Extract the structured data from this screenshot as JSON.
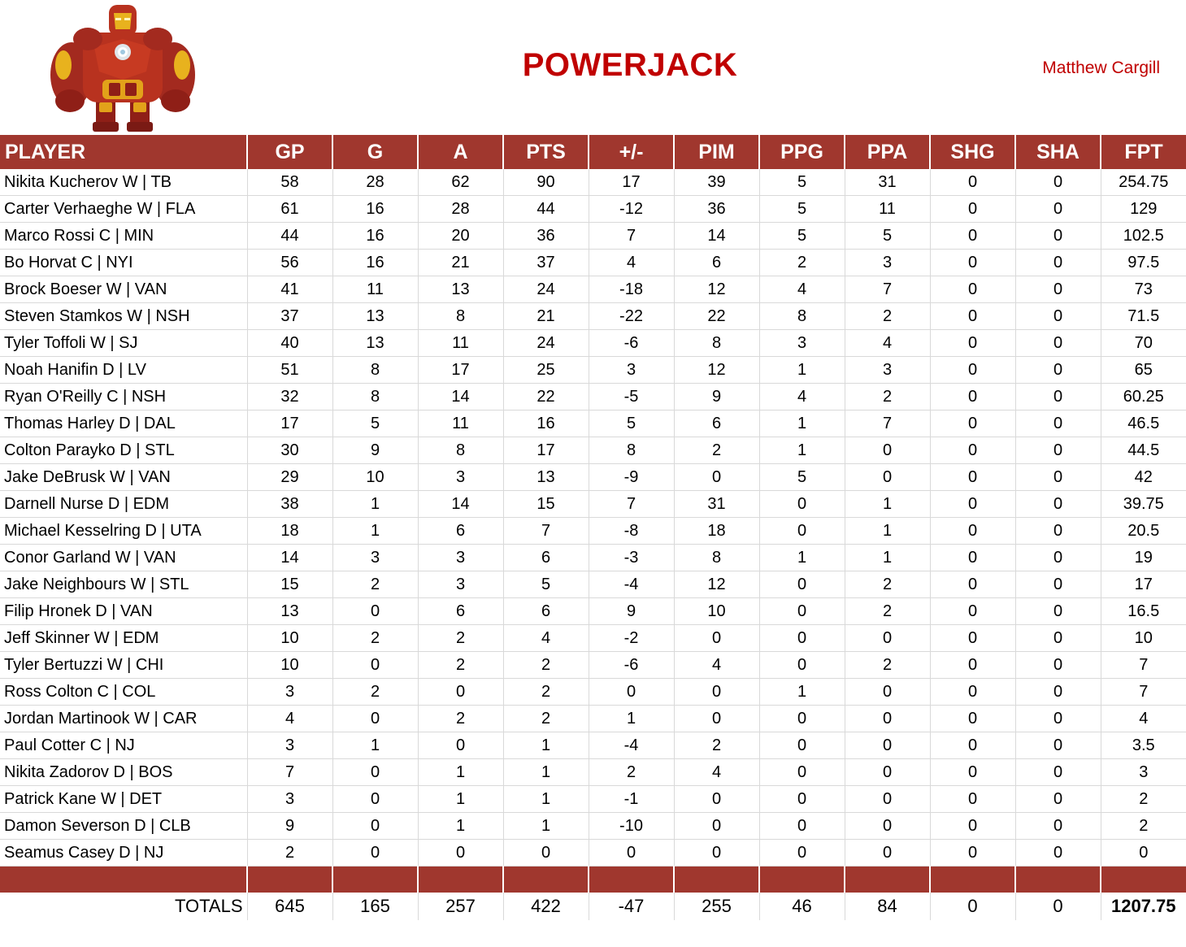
{
  "header": {
    "team_name": "POWERJACK",
    "owner": "Matthew Cargill",
    "mascot_icon": "armored-robot-figure-icon",
    "title_color": "#c00000",
    "header_bar_color": "#a0372e"
  },
  "table": {
    "columns": [
      "PLAYER",
      "GP",
      "G",
      "A",
      "PTS",
      "+/-",
      "PIM",
      "PPG",
      "PPA",
      "SHG",
      "SHA",
      "FPT"
    ],
    "rows": [
      [
        "Nikita Kucherov W | TB",
        "58",
        "28",
        "62",
        "90",
        "17",
        "39",
        "5",
        "31",
        "0",
        "0",
        "254.75"
      ],
      [
        "Carter Verhaeghe W | FLA",
        "61",
        "16",
        "28",
        "44",
        "-12",
        "36",
        "5",
        "11",
        "0",
        "0",
        "129"
      ],
      [
        "Marco Rossi C | MIN",
        "44",
        "16",
        "20",
        "36",
        "7",
        "14",
        "5",
        "5",
        "0",
        "0",
        "102.5"
      ],
      [
        "Bo Horvat C | NYI",
        "56",
        "16",
        "21",
        "37",
        "4",
        "6",
        "2",
        "3",
        "0",
        "0",
        "97.5"
      ],
      [
        "Brock Boeser W | VAN",
        "41",
        "11",
        "13",
        "24",
        "-18",
        "12",
        "4",
        "7",
        "0",
        "0",
        "73"
      ],
      [
        "Steven Stamkos W | NSH",
        "37",
        "13",
        "8",
        "21",
        "-22",
        "22",
        "8",
        "2",
        "0",
        "0",
        "71.5"
      ],
      [
        "Tyler Toffoli W | SJ",
        "40",
        "13",
        "11",
        "24",
        "-6",
        "8",
        "3",
        "4",
        "0",
        "0",
        "70"
      ],
      [
        "Noah Hanifin D | LV",
        "51",
        "8",
        "17",
        "25",
        "3",
        "12",
        "1",
        "3",
        "0",
        "0",
        "65"
      ],
      [
        "Ryan O'Reilly C | NSH",
        "32",
        "8",
        "14",
        "22",
        "-5",
        "9",
        "4",
        "2",
        "0",
        "0",
        "60.25"
      ],
      [
        "Thomas Harley D | DAL",
        "17",
        "5",
        "11",
        "16",
        "5",
        "6",
        "1",
        "7",
        "0",
        "0",
        "46.5"
      ],
      [
        "Colton Parayko D | STL",
        "30",
        "9",
        "8",
        "17",
        "8",
        "2",
        "1",
        "0",
        "0",
        "0",
        "44.5"
      ],
      [
        "Jake DeBrusk W | VAN",
        "29",
        "10",
        "3",
        "13",
        "-9",
        "0",
        "5",
        "0",
        "0",
        "0",
        "42"
      ],
      [
        "Darnell Nurse D | EDM",
        "38",
        "1",
        "14",
        "15",
        "7",
        "31",
        "0",
        "1",
        "0",
        "0",
        "39.75"
      ],
      [
        "Michael Kesselring D | UTA",
        "18",
        "1",
        "6",
        "7",
        "-8",
        "18",
        "0",
        "1",
        "0",
        "0",
        "20.5"
      ],
      [
        "Conor Garland W | VAN",
        "14",
        "3",
        "3",
        "6",
        "-3",
        "8",
        "1",
        "1",
        "0",
        "0",
        "19"
      ],
      [
        "Jake Neighbours W | STL",
        "15",
        "2",
        "3",
        "5",
        "-4",
        "12",
        "0",
        "2",
        "0",
        "0",
        "17"
      ],
      [
        "Filip Hronek D | VAN",
        "13",
        "0",
        "6",
        "6",
        "9",
        "10",
        "0",
        "2",
        "0",
        "0",
        "16.5"
      ],
      [
        "Jeff Skinner W | EDM",
        "10",
        "2",
        "2",
        "4",
        "-2",
        "0",
        "0",
        "0",
        "0",
        "0",
        "10"
      ],
      [
        "Tyler Bertuzzi W | CHI",
        "10",
        "0",
        "2",
        "2",
        "-6",
        "4",
        "0",
        "2",
        "0",
        "0",
        "7"
      ],
      [
        "Ross Colton C | COL",
        "3",
        "2",
        "0",
        "2",
        "0",
        "0",
        "1",
        "0",
        "0",
        "0",
        "7"
      ],
      [
        "Jordan Martinook W | CAR",
        "4",
        "0",
        "2",
        "2",
        "1",
        "0",
        "0",
        "0",
        "0",
        "0",
        "4"
      ],
      [
        "Paul Cotter C | NJ",
        "3",
        "1",
        "0",
        "1",
        "-4",
        "2",
        "0",
        "0",
        "0",
        "0",
        "3.5"
      ],
      [
        "Nikita Zadorov D | BOS",
        "7",
        "0",
        "1",
        "1",
        "2",
        "4",
        "0",
        "0",
        "0",
        "0",
        "3"
      ],
      [
        "Patrick Kane W | DET",
        "3",
        "0",
        "1",
        "1",
        "-1",
        "0",
        "0",
        "0",
        "0",
        "0",
        "2"
      ],
      [
        "Damon Severson D | CLB",
        "9",
        "0",
        "1",
        "1",
        "-10",
        "0",
        "0",
        "0",
        "0",
        "0",
        "2"
      ],
      [
        "Seamus Casey D | NJ",
        "2",
        "0",
        "0",
        "0",
        "0",
        "0",
        "0",
        "0",
        "0",
        "0",
        "0"
      ]
    ],
    "totals": [
      "TOTALS",
      "645",
      "165",
      "257",
      "422",
      "-47",
      "255",
      "46",
      "84",
      "0",
      "0",
      "1207.75"
    ]
  }
}
